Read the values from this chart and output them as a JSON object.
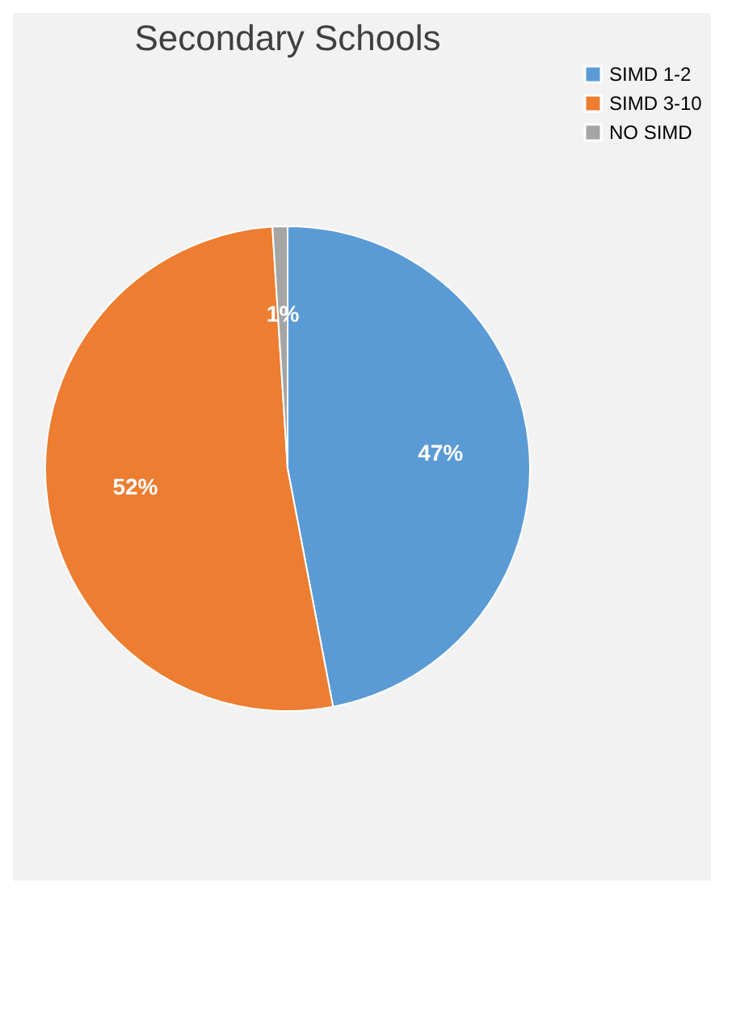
{
  "chart_data": {
    "type": "pie",
    "title": "Secondary Schools",
    "categories": [
      "SIMD 1-2",
      "SIMD 3-10",
      "NO SIMD"
    ],
    "values": [
      47,
      52,
      1
    ],
    "colors": [
      "#5b9bd5",
      "#ed7d31",
      "#a5a5a5"
    ],
    "value_labels": [
      "47%",
      "52%",
      "1%"
    ],
    "legend": "right"
  }
}
